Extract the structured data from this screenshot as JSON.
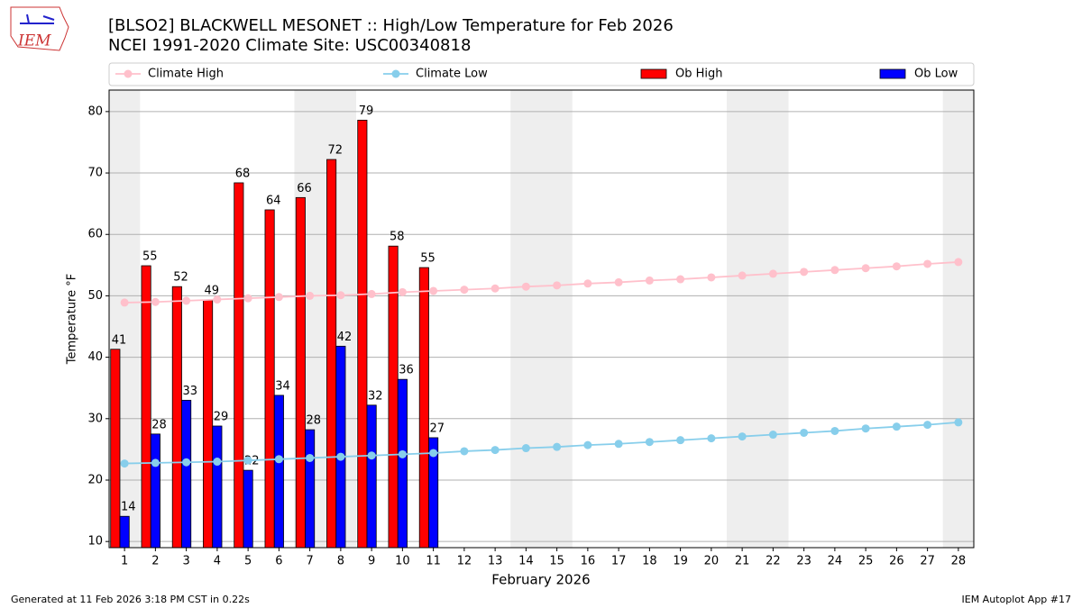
{
  "chart_data": {
    "type": "bar",
    "title": "[BLSO2] BLACKWELL MESONET :: High/Low Temperature for Feb 2026",
    "subtitle": "NCEI 1991-2020 Climate Site: USC00340818",
    "logo": "IEM",
    "x_label": "February 2026",
    "y_label": "Temperature °F",
    "footer_left": "Generated at 11 Feb 2026 3:18 PM CST in 0.22s",
    "footer_right": "IEM Autoplot App #17",
    "categories": [
      "1",
      "2",
      "3",
      "4",
      "5",
      "6",
      "7",
      "8",
      "9",
      "10",
      "11",
      "12",
      "13",
      "14",
      "15",
      "16",
      "17",
      "18",
      "19",
      "20",
      "21",
      "22",
      "23",
      "24",
      "25",
      "26",
      "27",
      "28"
    ],
    "ylim": [
      9,
      83.5
    ],
    "yticks": [
      10,
      20,
      30,
      40,
      50,
      60,
      70,
      80
    ],
    "grid": true,
    "series": [
      {
        "name": "Climate High",
        "kind": "line",
        "color": "#ffc0cb",
        "values": [
          48.9,
          49.0,
          49.2,
          49.4,
          49.6,
          49.8,
          50.0,
          50.1,
          50.3,
          50.6,
          50.8,
          51.0,
          51.2,
          51.5,
          51.7,
          52.0,
          52.2,
          52.5,
          52.7,
          53.0,
          53.3,
          53.6,
          53.9,
          54.2,
          54.5,
          54.8,
          55.2,
          55.5
        ]
      },
      {
        "name": "Climate Low",
        "kind": "line",
        "color": "#87ceeb",
        "values": [
          22.7,
          22.8,
          22.9,
          23.0,
          23.2,
          23.4,
          23.6,
          23.8,
          24.0,
          24.2,
          24.4,
          24.7,
          24.9,
          25.2,
          25.4,
          25.7,
          25.9,
          26.2,
          26.5,
          26.8,
          27.1,
          27.4,
          27.7,
          28.0,
          28.4,
          28.7,
          29.0,
          29.4
        ]
      },
      {
        "name": "Ob High",
        "kind": "bar",
        "color": "#ff0000",
        "values": [
          41.3,
          54.9,
          51.5,
          49.3,
          68.4,
          64.0,
          66.0,
          72.2,
          78.6,
          58.1,
          54.6,
          null,
          null,
          null,
          null,
          null,
          null,
          null,
          null,
          null,
          null,
          null,
          null,
          null,
          null,
          null,
          null,
          null
        ],
        "value_labels": [
          "41",
          "55",
          "52",
          "49",
          "68",
          "64",
          "66",
          "72",
          "79",
          "58",
          "55",
          null,
          null,
          null,
          null,
          null,
          null,
          null,
          null,
          null,
          null,
          null,
          null,
          null,
          null,
          null,
          null,
          null
        ]
      },
      {
        "name": "Ob Low",
        "kind": "bar",
        "color": "#0000ff",
        "values": [
          14.1,
          27.5,
          33.0,
          28.8,
          21.6,
          33.8,
          28.2,
          41.8,
          32.2,
          36.4,
          26.9,
          null,
          null,
          null,
          null,
          null,
          null,
          null,
          null,
          null,
          null,
          null,
          null,
          null,
          null,
          null,
          null,
          null
        ],
        "value_labels": [
          "14",
          "28",
          "33",
          "29",
          "22",
          "34",
          "28",
          "42",
          "32",
          "36",
          "27",
          null,
          null,
          null,
          null,
          null,
          null,
          null,
          null,
          null,
          null,
          null,
          null,
          null,
          null,
          null,
          null,
          null
        ]
      }
    ]
  }
}
